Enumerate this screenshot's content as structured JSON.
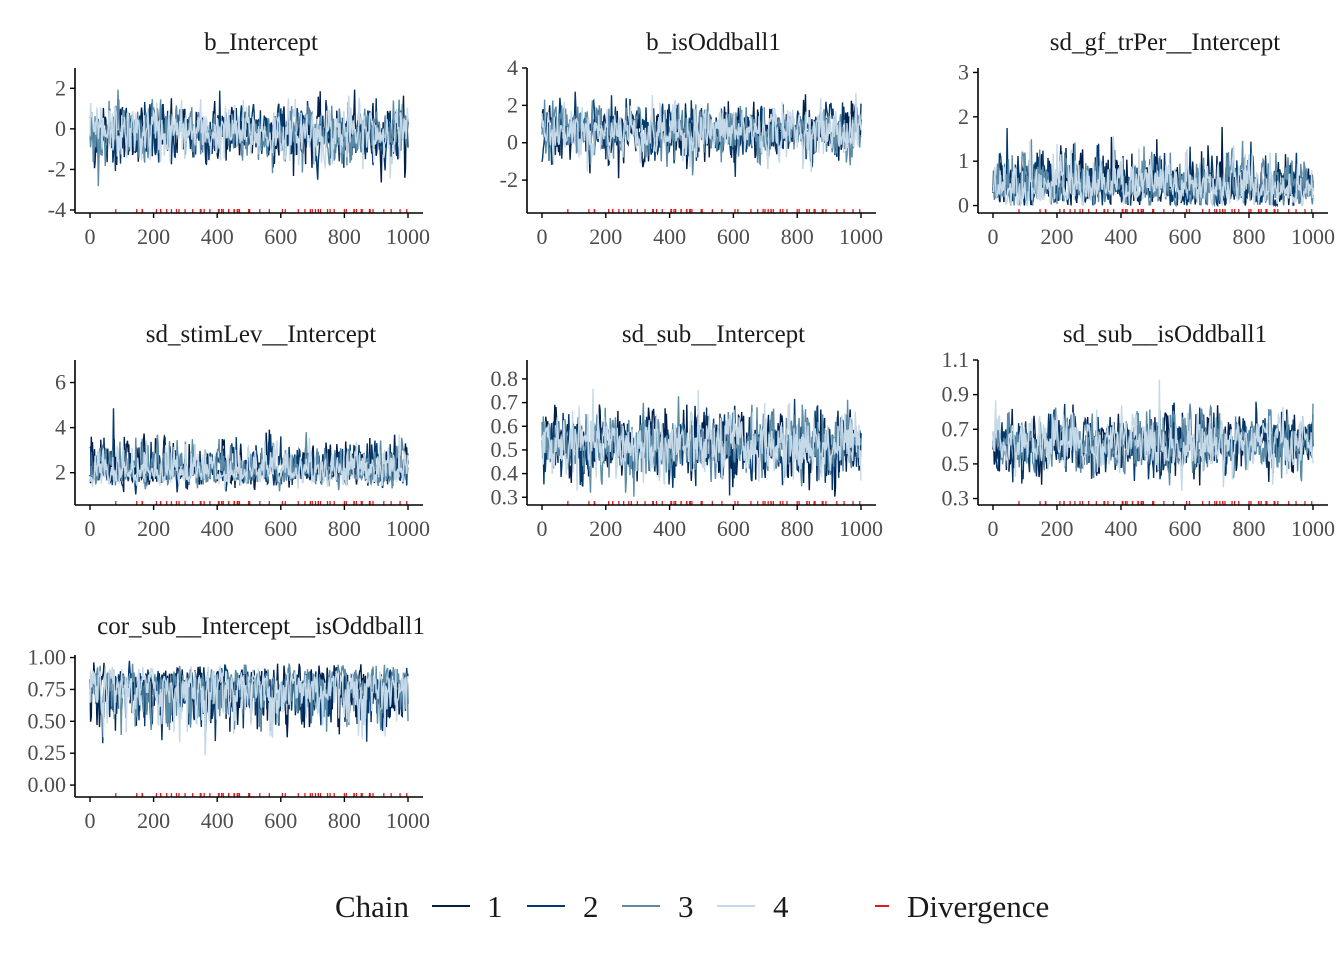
{
  "chart_data": {
    "type": "line",
    "iterations": [
      0,
      1000
    ],
    "x_ticks": [
      "0",
      "200",
      "400",
      "600",
      "800",
      "1000"
    ],
    "panels": [
      {
        "title": "b_Intercept",
        "ylim": [
          -4,
          3
        ],
        "y_ticks": [
          [
            -4,
            "-4"
          ],
          [
            -2,
            "-2"
          ],
          [
            0,
            "0"
          ],
          [
            2,
            "2"
          ]
        ],
        "center": -0.2,
        "spread": 1.0,
        "lo": -3.9,
        "hi": 2.9,
        "skew": 0
      },
      {
        "title": "b_isOddball1",
        "ylim": [
          -3.6,
          4
        ],
        "y_ticks": [
          [
            -2,
            "-2"
          ],
          [
            0,
            "0"
          ],
          [
            2,
            "2"
          ],
          [
            4,
            "4"
          ]
        ],
        "center": 0.6,
        "spread": 1.0,
        "lo": -3.4,
        "hi": 3.8,
        "skew": 0
      },
      {
        "title": "sd_gf_trPer__Intercept",
        "ylim": [
          -0.1,
          3.1
        ],
        "y_ticks": [
          [
            0,
            "0"
          ],
          [
            1,
            "1"
          ],
          [
            2,
            "2"
          ],
          [
            3,
            "3"
          ]
        ],
        "center": 0.35,
        "spread": 0.45,
        "lo": 0.0,
        "hi": 3.0,
        "skew": 1
      },
      {
        "title": "sd_stimLev__Intercept",
        "ylim": [
          0.7,
          7.0
        ],
        "y_ticks": [
          [
            2,
            "2"
          ],
          [
            4,
            "4"
          ],
          [
            6,
            "6"
          ]
        ],
        "center": 2.0,
        "spread": 0.7,
        "lo": 0.9,
        "hi": 6.7,
        "skew": 1
      },
      {
        "title": "sd_sub__Intercept",
        "ylim": [
          0.28,
          0.88
        ],
        "y_ticks": [
          [
            0.3,
            "0.3"
          ],
          [
            0.4,
            "0.4"
          ],
          [
            0.5,
            "0.5"
          ],
          [
            0.6,
            "0.6"
          ],
          [
            0.7,
            "0.7"
          ],
          [
            0.8,
            "0.8"
          ]
        ],
        "center": 0.52,
        "spread": 0.1,
        "lo": 0.3,
        "hi": 0.86,
        "skew": 0
      },
      {
        "title": "sd_sub__isOddball1",
        "ylim": [
          0.28,
          1.1
        ],
        "y_ticks": [
          [
            0.3,
            "0.3"
          ],
          [
            0.5,
            "0.5"
          ],
          [
            0.7,
            "0.7"
          ],
          [
            0.9,
            "0.9"
          ],
          [
            1.1,
            "1.1"
          ]
        ],
        "center": 0.62,
        "spread": 0.12,
        "lo": 0.3,
        "hi": 1.07,
        "skew": 0
      },
      {
        "title": "cor_sub__Intercept__isOddball1",
        "ylim": [
          -0.07,
          1.02
        ],
        "y_ticks": [
          [
            0,
            "0.00"
          ],
          [
            0.25,
            "0.25"
          ],
          [
            0.5,
            "0.50"
          ],
          [
            0.75,
            "0.75"
          ],
          [
            1,
            "1.00"
          ]
        ],
        "center": 0.8,
        "spread": 0.15,
        "lo": -0.05,
        "hi": 1.0,
        "skew": -1
      }
    ],
    "series": [
      {
        "name": "1",
        "color": "#011f4b"
      },
      {
        "name": "2",
        "color": "#03396c"
      },
      {
        "name": "3",
        "color": "#5b8ba6"
      },
      {
        "name": "4",
        "color": "#c5d9e8"
      }
    ],
    "divergence_color": "#e41a1c",
    "legend": {
      "title": "Chain",
      "divergence_label": "Divergence",
      "placement": "bottom"
    }
  }
}
